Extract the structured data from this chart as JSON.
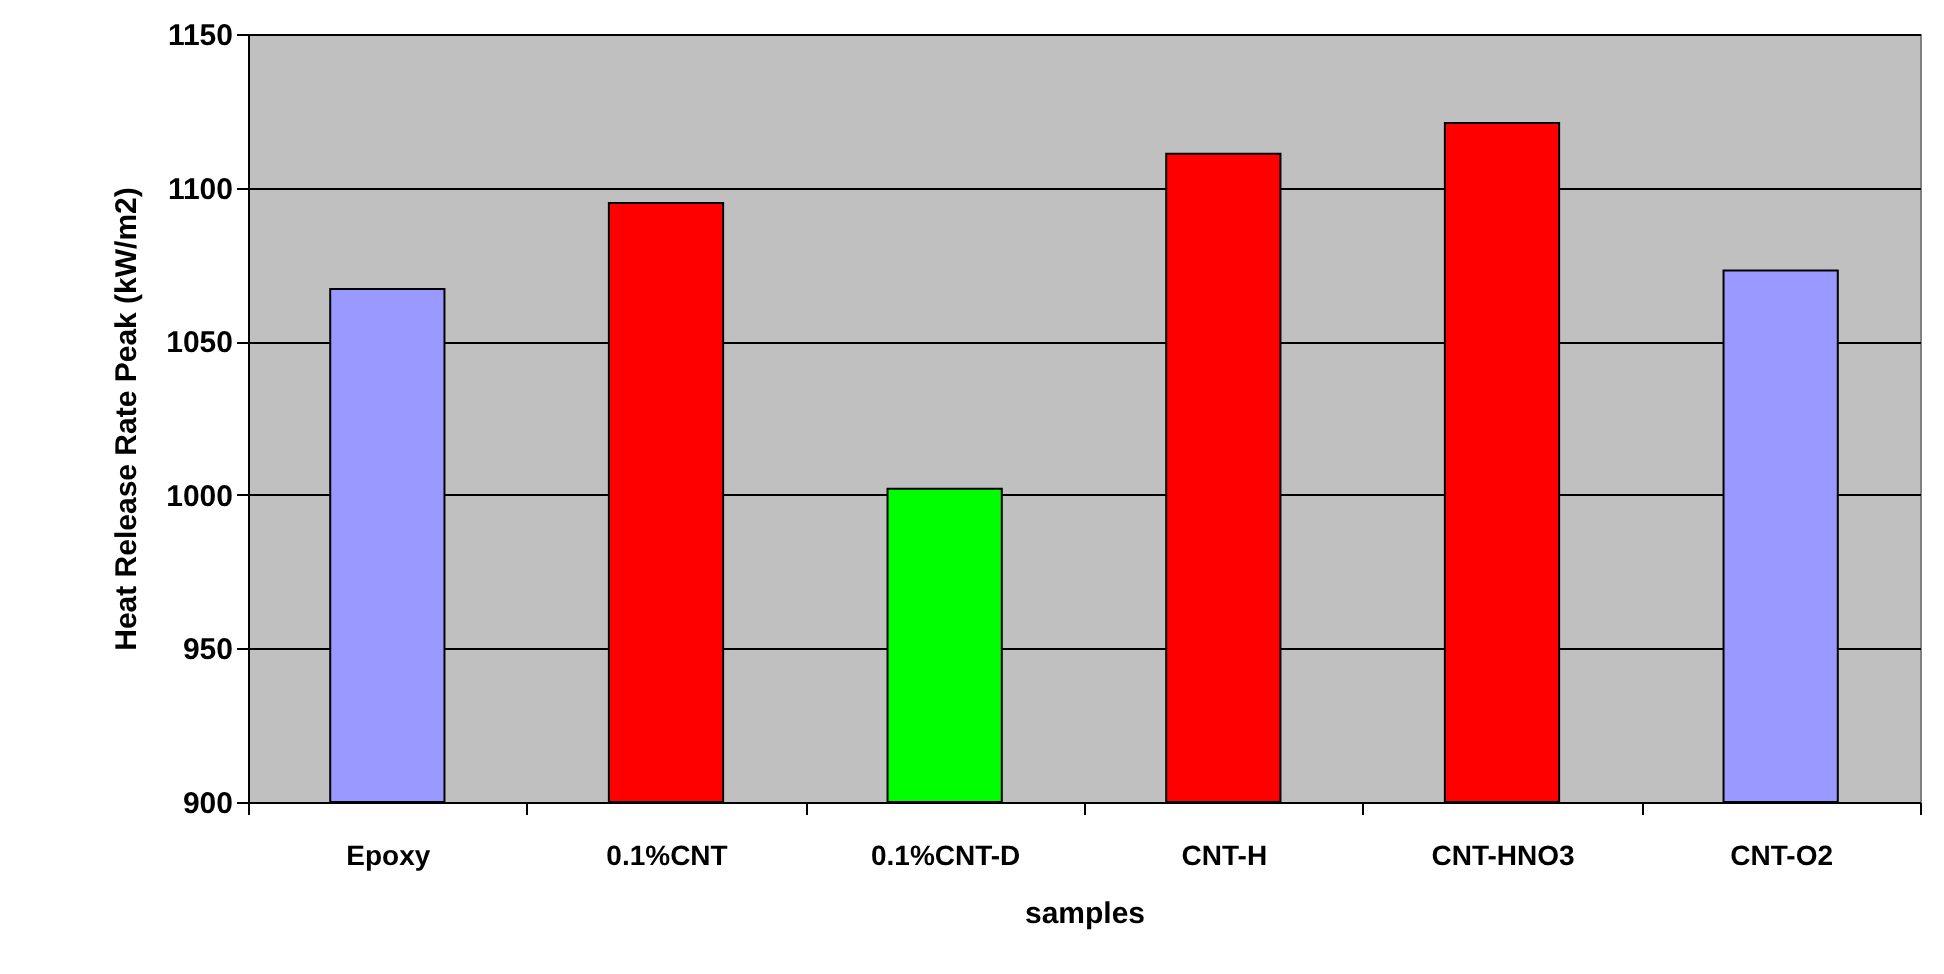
{
  "chart_data": {
    "type": "bar",
    "xlabel": "samples",
    "ylabel": "Heat Release Rate Peak (kW/m2)",
    "categories": [
      "Epoxy",
      "0.1%CNT",
      "0.1%CNT-D",
      "CNT-H",
      "CNT-HNO3",
      "CNT-O2"
    ],
    "values": [
      1067,
      1095,
      1002,
      1111,
      1121,
      1073
    ],
    "colors": [
      "#9999ff",
      "#ff0000",
      "#00ff00",
      "#ff0000",
      "#ff0000",
      "#9999ff"
    ],
    "ylim": [
      900,
      1150
    ],
    "yticks": [
      900,
      950,
      1000,
      1050,
      1100,
      1150
    ],
    "grid": "y"
  }
}
